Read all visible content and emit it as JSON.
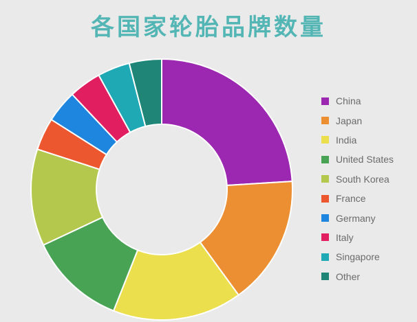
{
  "page": {
    "background_color": "#EAEAEA"
  },
  "header": {
    "title": "各国家轮胎品牌数量",
    "title_color": "#53B6B5"
  },
  "legend": {
    "text_color": "#6B6B6B",
    "items": [
      "China",
      "Japan",
      "India",
      "United States",
      "South Korea",
      "France",
      "Germany",
      "Italy",
      "Singapore",
      "Other"
    ]
  },
  "chart_data": {
    "type": "pie",
    "subtype": "donut",
    "title": "各国家轮胎品牌数量",
    "categories": [
      "China",
      "Japan",
      "India",
      "United States",
      "South Korea",
      "France",
      "Germany",
      "Italy",
      "Singapore",
      "Other"
    ],
    "values": [
      24,
      16,
      16,
      12,
      12,
      4,
      4,
      4,
      4,
      4
    ],
    "value_unit": "percent_of_total",
    "colors": [
      "#9C27B0",
      "#EB8F32",
      "#EBDF4E",
      "#48A355",
      "#B5C84E",
      "#EC5730",
      "#1E86DF",
      "#E11E5F",
      "#1FA9B5",
      "#1F8576"
    ],
    "slice_border_color": "#FFFFFF",
    "start_angle_deg": 0,
    "direction": "clockwise",
    "inner_radius_ratio": 0.5,
    "legend_position": "right",
    "data_labels": "none"
  }
}
